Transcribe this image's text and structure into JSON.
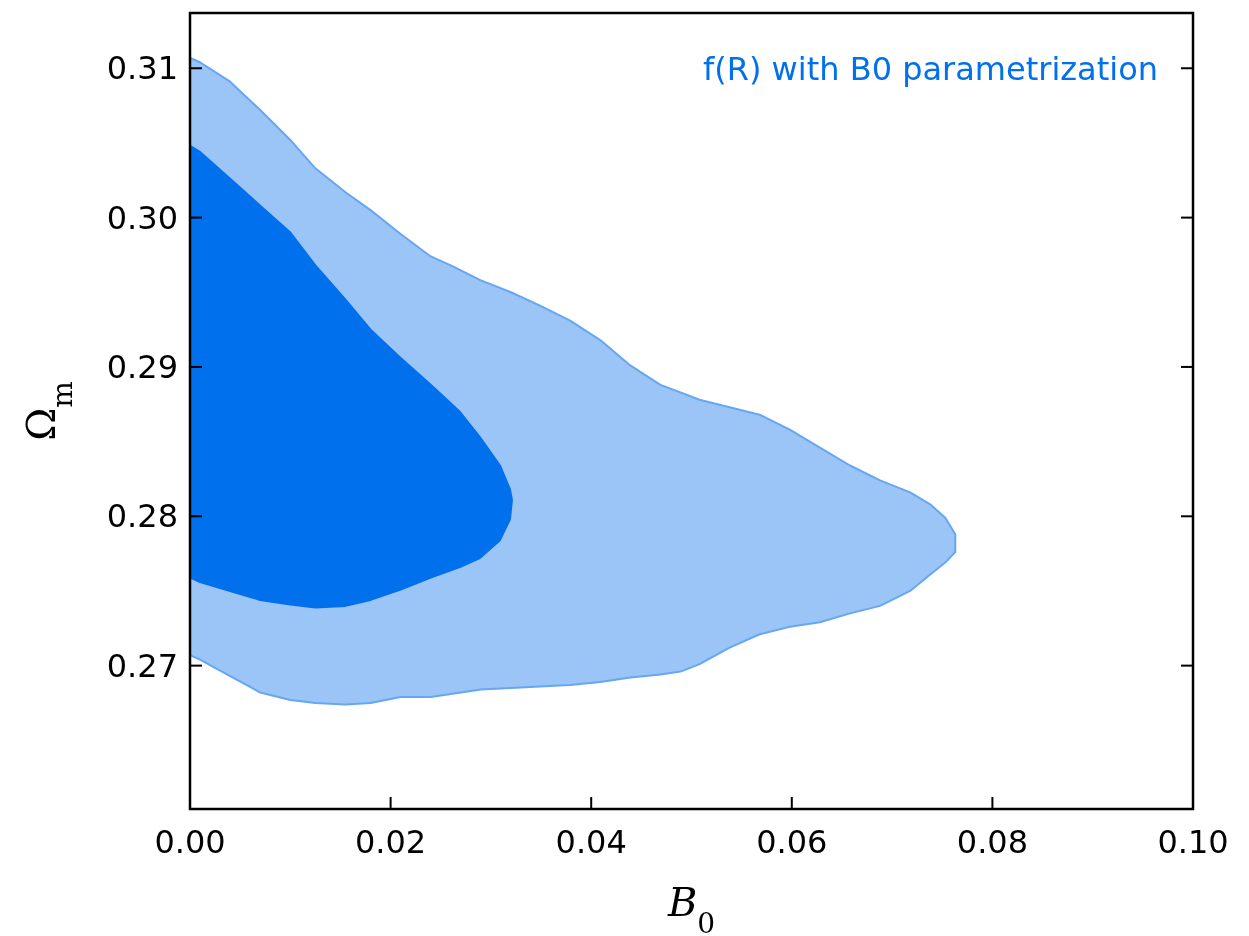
{
  "chart_data": {
    "type": "area",
    "xlabel": "B$_{0}$",
    "ylabel": "Ω$_{m}$",
    "annotations": [
      "f(R) with B0 parametrization"
    ],
    "xlim": [
      0,
      0.1
    ],
    "ylim": [
      0.2604,
      0.3137
    ],
    "xticks": [
      {
        "value": 0,
        "label": "0.00"
      },
      0.02,
      0.04,
      0.06,
      0.08,
      {
        "value": 0.1,
        "label": "0.10"
      }
    ],
    "yticks": [
      0.27,
      0.28,
      0.29,
      {
        "value": 0.3,
        "label": "0.30"
      },
      0.31
    ],
    "grid": false,
    "series": [
      {
        "color": "#9bc5f7",
        "x": [
          0,
          0.001,
          0.004,
          0.007,
          0.01,
          0.0125,
          0.0155,
          0.018,
          0.021,
          0.024,
          0.026,
          0.029,
          0.032,
          0.0349,
          0.0379,
          0.0409,
          0.0439,
          0.0469,
          0.0489,
          0.0508,
          0.0538,
          0.0568,
          0.0598,
          0.0628,
          0.0658,
          0.0688,
          0.0718,
          0.0738,
          0.0753,
          0.0763,
          0.0763,
          0.0753,
          0.0738,
          0.0718,
          0.0688,
          0.0658,
          0.0628,
          0.0598,
          0.0568,
          0.0538,
          0.0508,
          0.0489,
          0.0469,
          0.0439,
          0.0409,
          0.0379,
          0.0349,
          0.032,
          0.029,
          0.026,
          0.024,
          0.021,
          0.018,
          0.0155,
          0.0125,
          0.01,
          0.007,
          0.004,
          0.001,
          0
        ],
        "values": [
          0.3107,
          0.3104,
          0.3091,
          0.3072,
          0.3052,
          0.3033,
          0.3017,
          0.3005,
          0.2989,
          0.2974,
          0.2968,
          0.2958,
          0.295,
          0.2941,
          0.2931,
          0.2918,
          0.2901,
          0.2888,
          0.2883,
          0.2878,
          0.2873,
          0.2868,
          0.2858,
          0.2846,
          0.2834,
          0.2824,
          0.2816,
          0.2808,
          0.2799,
          0.2788,
          0.2776,
          0.2769,
          0.2761,
          0.275,
          0.274,
          0.2735,
          0.2729,
          0.2726,
          0.2721,
          0.2712,
          0.2701,
          0.2696,
          0.2694,
          0.2692,
          0.2689,
          0.2687,
          0.2686,
          0.2685,
          0.2684,
          0.2681,
          0.2679,
          0.2679,
          0.2675,
          0.2674,
          0.2675,
          0.2677,
          0.2682,
          0.2693,
          0.2704,
          0.2707
        ]
      },
      {
        "color": "#0070ec",
        "x": [
          0,
          0.001,
          0.004,
          0.007,
          0.01,
          0.0125,
          0.0155,
          0.018,
          0.021,
          0.024,
          0.0269,
          0.0289,
          0.0309,
          0.0319,
          0.0321,
          0.0319,
          0.0309,
          0.0289,
          0.0269,
          0.024,
          0.021,
          0.018,
          0.0155,
          0.0125,
          0.01,
          0.007,
          0.004,
          0.001,
          0
        ],
        "values": [
          0.3048,
          0.3044,
          0.3026,
          0.3008,
          0.299,
          0.2968,
          0.2945,
          0.2925,
          0.2906,
          0.2888,
          0.287,
          0.2853,
          0.2834,
          0.2818,
          0.2811,
          0.2798,
          0.2784,
          0.2772,
          0.2766,
          0.2759,
          0.2751,
          0.2744,
          0.274,
          0.2739,
          0.2741,
          0.2744,
          0.275,
          0.2756,
          0.2759
        ]
      }
    ]
  }
}
